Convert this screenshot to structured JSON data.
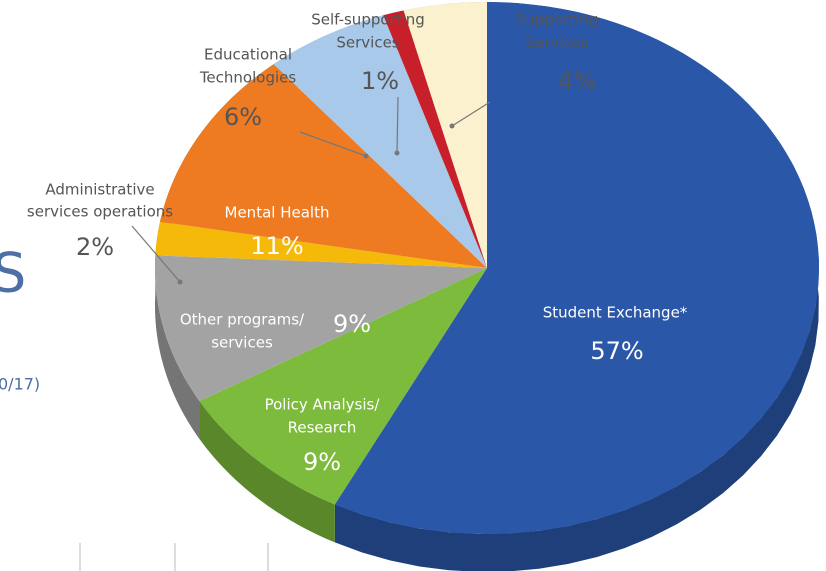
{
  "chart_data": {
    "type": "pie",
    "categories": [
      [
        "Student Exchange*"
      ],
      [
        "Policy Analysis/",
        "Research"
      ],
      [
        "Other programs/",
        "services"
      ],
      [
        "Administrative",
        "services operations"
      ],
      [
        "Mental Health"
      ],
      [
        "Educational",
        "Technologies"
      ],
      [
        "Self-supporting",
        "Services"
      ],
      [
        "Supporting",
        "Services"
      ]
    ],
    "values": [
      57,
      9,
      9,
      2,
      11,
      6,
      1,
      4
    ],
    "value_labels": [
      "57%",
      "9%",
      "9%",
      "2%",
      "11%",
      "6%",
      "1%",
      "4%"
    ],
    "colors": [
      "#2b57a9",
      "#7cbb3b",
      "#a3a3a3",
      "#f5b90a",
      "#ee7b22",
      "#a9c9eb",
      "#c8202a",
      "#fbf1cf"
    ],
    "background_text": [
      "S",
      "0/17)"
    ]
  }
}
